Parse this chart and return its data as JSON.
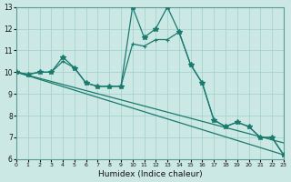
{
  "xlabel": "Humidex (Indice chaleur)",
  "bg_color": "#cce8e4",
  "line_color": "#1a7a6e",
  "xlim": [
    0,
    23
  ],
  "ylim": [
    6,
    13
  ],
  "xticks": [
    0,
    1,
    2,
    3,
    4,
    5,
    6,
    7,
    8,
    9,
    10,
    11,
    12,
    13,
    14,
    15,
    16,
    17,
    18,
    19,
    20,
    21,
    22,
    23
  ],
  "yticks": [
    6,
    7,
    8,
    9,
    10,
    11,
    12,
    13
  ],
  "series1_x": [
    0,
    1,
    2,
    3,
    4,
    5,
    6,
    7,
    8,
    9,
    10,
    11,
    12,
    13,
    14,
    15,
    16,
    17,
    18,
    19,
    20,
    21,
    22,
    23
  ],
  "series1_y": [
    10,
    9.9,
    10,
    10,
    10.7,
    10.2,
    9.5,
    9.35,
    9.35,
    9.35,
    13,
    11.6,
    12.0,
    13.0,
    11.85,
    10.35,
    9.5,
    7.8,
    7.5,
    7.7,
    7.5,
    7.0,
    7.0,
    6.2
  ],
  "series2_x": [
    0,
    1,
    2,
    3,
    4,
    5,
    6,
    7,
    8,
    9,
    10,
    11,
    12,
    13,
    14,
    15,
    16,
    17,
    18,
    19,
    20,
    21,
    22,
    23
  ],
  "series2_y": [
    10,
    9.9,
    10,
    10,
    10.5,
    10.2,
    9.5,
    9.35,
    9.35,
    9.35,
    11.3,
    11.2,
    11.5,
    11.5,
    11.85,
    10.35,
    9.5,
    7.8,
    7.5,
    7.7,
    7.5,
    7.0,
    7.0,
    6.2
  ],
  "series3_x": [
    0,
    23
  ],
  "series3_y": [
    10,
    6.2
  ],
  "series4_x": [
    0,
    23
  ],
  "series4_y": [
    10,
    6.75
  ]
}
